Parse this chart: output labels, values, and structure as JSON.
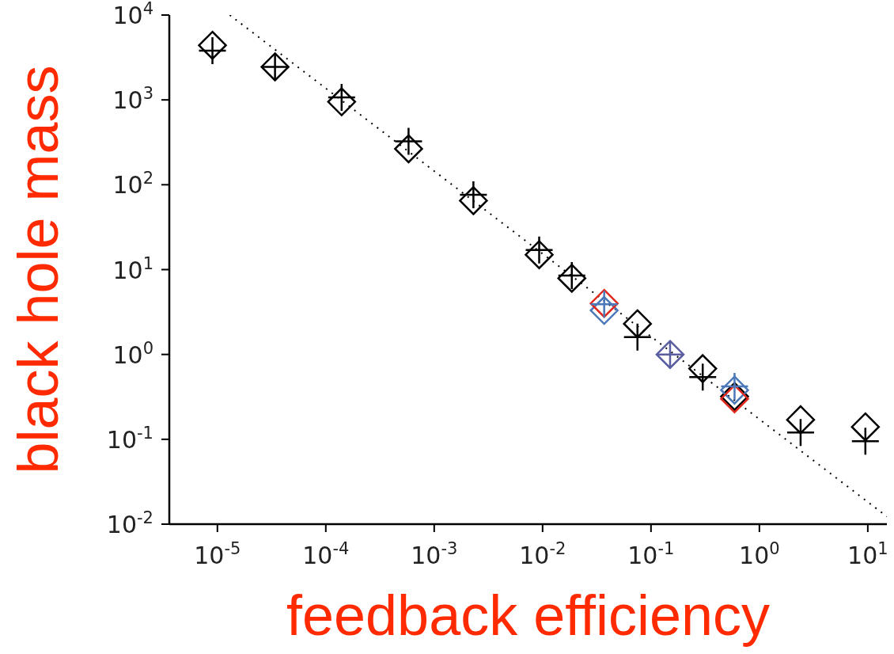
{
  "chart_data": {
    "type": "scatter",
    "xlabel": "feedback efficiency",
    "ylabel": "black hole mass",
    "log": "xy",
    "xlim": [
      3.6e-06,
      15
    ],
    "ylim": [
      0.01,
      10000
    ],
    "xticks": [
      {
        "value": 1e-05,
        "label": "10$^{-5}$"
      },
      {
        "value": 0.0001,
        "label": "10$^{-4}$"
      },
      {
        "value": 0.001,
        "label": "10$^{-3}$"
      },
      {
        "value": 0.01,
        "label": "10$^{-2}$"
      },
      {
        "value": 0.1,
        "label": "10$^{-1}$"
      },
      {
        "value": 1,
        "label": "10$^{0}$"
      },
      {
        "value": 10,
        "label": "10$^{1}$"
      }
    ],
    "yticks": [
      {
        "value": 0.01,
        "label": "10$^{-2}$"
      },
      {
        "value": 0.1,
        "label": "10$^{-1}$"
      },
      {
        "value": 1,
        "label": "10$^{0}$"
      },
      {
        "value": 10,
        "label": "10$^{1}$"
      },
      {
        "value": 100,
        "label": "10$^{2}$"
      },
      {
        "value": 1000,
        "label": "10$^{3}$"
      },
      {
        "value": 10000,
        "label": "10$^{4}$"
      }
    ],
    "series": [
      {
        "type": "line",
        "line_style": "dotted",
        "marker": "none",
        "color": "#000000",
        "x": [
          1.3e-05,
          15
        ],
        "values": [
          10000,
          0.0123
        ]
      },
      {
        "type": "scatter",
        "marker": "diamond",
        "color": "#000000",
        "x": [
          9e-06,
          3.4e-05,
          0.00014,
          0.00058,
          0.0023,
          0.0093,
          0.0186,
          0.037,
          0.075,
          0.3,
          0.59,
          2.4,
          9.5
        ],
        "values": [
          4400,
          2450,
          950,
          265,
          65,
          15,
          7.9,
          null,
          2.3,
          0.68,
          0.32,
          0.17,
          0.14
        ]
      },
      {
        "type": "scatter",
        "marker": "cross",
        "color": "#000000",
        "x": [
          9e-06,
          3.4e-05,
          0.00014,
          0.00058,
          0.0023,
          0.0093,
          0.0186,
          0.075,
          0.3,
          0.59,
          2.4,
          9.5
        ],
        "values": [
          3800,
          2450,
          1070,
          325,
          76,
          17,
          8.5,
          1.6,
          0.54,
          null,
          0.12,
          0.095
        ]
      },
      {
        "type": "scatter",
        "marker": "diamond",
        "color": "#4a78b8",
        "x": [
          0.037,
          0.59
        ],
        "values": [
          3.3,
          0.38
        ]
      },
      {
        "type": "scatter",
        "marker": "diamond",
        "color": "#e0281e",
        "x": [
          0.037,
          0.59
        ],
        "values": [
          4.0,
          0.3
        ]
      },
      {
        "type": "scatter",
        "marker": "cross",
        "color": "#4a78b8",
        "x": [
          0.037,
          0.59
        ],
        "values": [
          3.9,
          0.42
        ]
      },
      {
        "type": "scatter",
        "marker": "diamond",
        "color": "#5a5ea0",
        "x": [
          0.15
        ],
        "values": [
          1.0
        ]
      },
      {
        "type": "scatter",
        "marker": "cross",
        "color": "#5a5ea0",
        "x": [
          0.15
        ],
        "values": [
          1.0
        ]
      }
    ]
  }
}
